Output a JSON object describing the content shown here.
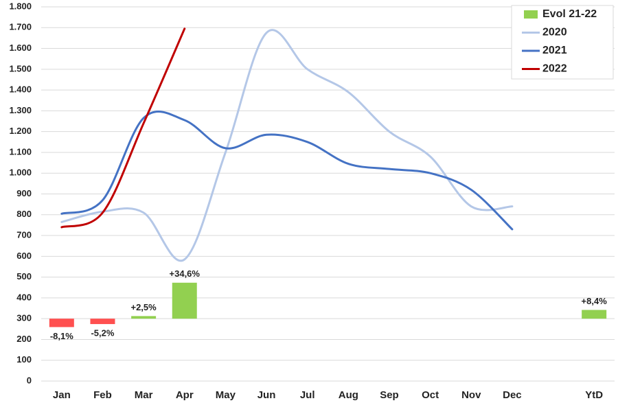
{
  "chart_data": {
    "type": "line",
    "categories": [
      "Jan",
      "Feb",
      "Mar",
      "Apr",
      "May",
      "Jun",
      "Jul",
      "Aug",
      "Sep",
      "Oct",
      "Nov",
      "Dec",
      null,
      "YtD"
    ],
    "ylim": [
      0,
      1800
    ],
    "yticks": [
      0,
      100,
      200,
      300,
      400,
      500,
      600,
      700,
      800,
      900,
      {
        "value": 1000,
        "label": "1.000"
      },
      {
        "value": 1100,
        "label": "1.100"
      },
      {
        "value": 1200,
        "label": "1.200"
      },
      {
        "value": 1300,
        "label": "1.300"
      },
      {
        "value": 1400,
        "label": "1.400"
      },
      {
        "value": 1500,
        "label": "1.500"
      },
      {
        "value": 1600,
        "label": "1.600"
      },
      {
        "value": 1700,
        "label": "1.700"
      },
      {
        "value": 1800,
        "label": "1.800"
      }
    ],
    "y2lim": [
      -60,
      300
    ],
    "grid": true,
    "legend": "top-right",
    "series": [
      {
        "name": "Evol 21-22",
        "type": "bar",
        "axis": "y2",
        "color": "#92d050",
        "negative_color": "#ff5050",
        "values": [
          -8.1,
          -5.2,
          2.5,
          34.6,
          null,
          null,
          null,
          null,
          null,
          null,
          null,
          null,
          null,
          8.4
        ],
        "value_labels": [
          "-8,1%",
          "-5,2%",
          "+2,5%",
          "+34,6%",
          null,
          null,
          null,
          null,
          null,
          null,
          null,
          null,
          null,
          "+8,4%"
        ]
      },
      {
        "name": "2020",
        "type": "line",
        "color": "#b4c7e7",
        "values": [
          765,
          815,
          810,
          585,
          1100,
          1675,
          1500,
          1390,
          1200,
          1080,
          840,
          840,
          null,
          null
        ]
      },
      {
        "name": "2021",
        "type": "line",
        "color": "#4472c4",
        "values": [
          805,
          870,
          1265,
          1255,
          1120,
          1185,
          1150,
          1045,
          1020,
          1000,
          920,
          730,
          null,
          null
        ]
      },
      {
        "name": "2022",
        "type": "line",
        "color": "#c00000",
        "values": [
          740,
          810,
          1240,
          1695,
          null,
          null,
          null,
          null,
          null,
          null,
          null,
          null,
          null,
          null
        ]
      }
    ]
  }
}
